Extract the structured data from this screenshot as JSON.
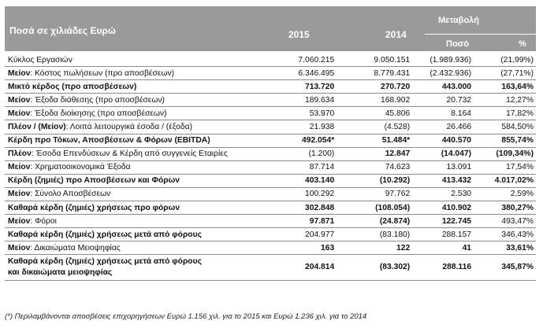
{
  "header": {
    "title": "Ποσά σε χιλιάδες Ευρώ",
    "year_2015": "2015",
    "year_2014": "2014",
    "change": "Μεταβολή",
    "amount": "Ποσό",
    "percent": "%"
  },
  "rows": [
    {
      "pre": "",
      "label": "Κύκλος Εργασιών",
      "v2015": "7.060.215",
      "v2014": "9.050.151",
      "diff": "(1.989.936)",
      "pct": "(21,99%)",
      "bold": false
    },
    {
      "pre": "Μείον",
      "label": ": Κόστος πωλήσεων (προ αποσβέσεων)",
      "v2015": "6.346.495",
      "v2014": "8.779.431",
      "diff": "(2.432.936)",
      "pct": "(27,71%)",
      "bold": false
    },
    {
      "pre": "",
      "label": "Μικτό κέρδος (προ αποσβέσεων)",
      "v2015": "713.720",
      "v2014": "270.720",
      "diff": "443.000",
      "pct": "163,64%",
      "bold": true
    },
    {
      "pre": "Μείον",
      "label": ": Έξοδα διάθεσης (προ αποσβέσεων)",
      "v2015": "189.634",
      "v2014": "168.902",
      "diff": "20.732",
      "pct": "12,27%",
      "bold": false
    },
    {
      "pre": "Μείον",
      "label": ": Έξοδα διοίκησης (προ αποσβέσεων)",
      "v2015": "53.970",
      "v2014": "45.806",
      "diff": "8.164",
      "pct": "17,82%",
      "bold": false
    },
    {
      "pre": "Πλέον / (Μείον)",
      "label": ": Λοιπά λειτουργικά έσοδα / (έξοδα)",
      "v2015": "21.938",
      "v2014": "(4.528)",
      "diff": "26.466",
      "pct": "584,50%",
      "bold": false
    },
    {
      "pre": "",
      "label": "Κέρδη προ Τόκων, Αποσβέσεων & Φόρων (EBITDA)",
      "v2015": "492.054*",
      "v2014": "51.484*",
      "diff": "440.570",
      "pct": "855,74%",
      "bold": true
    },
    {
      "pre": "Πλέον",
      "label": ": Έσοδα Επενδύσεων & Κέρδη από συγγενείς Εταιρίες",
      "v2015": "(1.200)",
      "v2014": "12.847",
      "diff": "(14.047)",
      "pct": "(109,34%)",
      "bold": false,
      "bold_v2014": true,
      "bold_diff": true,
      "bold_pct": true
    },
    {
      "pre": "Μείον",
      "label": ": Χρηματοοικονομικά Έξοδα",
      "v2015": "87.714",
      "v2014": "74.623",
      "diff": "13.091",
      "pct": "17,54%",
      "bold": false
    },
    {
      "pre": "",
      "label": "Κέρδη (ζημιές) προ Αποσβέσεων και Φόρων",
      "v2015": "403.140",
      "v2014": "(10.292)",
      "diff": "413.432",
      "pct": "4.017,02%",
      "bold": true
    },
    {
      "pre": "Μείον",
      "label": ": Σύνολο Αποσβέσεων",
      "v2015": "100.292",
      "v2014": "97.762",
      "diff": "2.530",
      "pct": "2,59%",
      "bold": false
    },
    {
      "pre": "",
      "label": "Καθαρά κέρδη (ζημιές) χρήσεως προ φόρων",
      "v2015": "302.848",
      "v2014": "(108.054)",
      "diff": "410.902",
      "pct": "380,27%",
      "bold": true
    },
    {
      "pre": "Μείον",
      "label": ": Φόροι",
      "v2015": "97.871",
      "v2014": "(24.874)",
      "diff": "122.745",
      "pct": "493,47%",
      "bold": false,
      "bold_v2015": true,
      "bold_v2014": true,
      "bold_diff": true
    },
    {
      "pre": "",
      "label": "Καθαρά κέρδη (ζημιές) χρήσεως μετά από φόρους",
      "v2015": "204.977",
      "v2014": "(83.180)",
      "diff": "288.157",
      "pct": "346,43%",
      "bold": false,
      "bold_label": true
    },
    {
      "pre": "Μείον",
      "label": ": Δικαιώματα Μειοψηφίας",
      "v2015": "163",
      "v2014": "122",
      "diff": "41",
      "pct": "33,61%",
      "bold": false,
      "bold_v2015": true,
      "bold_v2014": true,
      "bold_diff": true,
      "bold_pct": true
    }
  ],
  "final_row": {
    "label_line1": "Καθαρά κέρδη (ζημιές) χρήσεως μετά από φόρους",
    "label_line2": "και δικαιώματα μειοψηφίας",
    "v2015": "204.814",
    "v2014": "(83.302)",
    "diff": "288.116",
    "pct": "345,87%"
  },
  "footnote": "(*) Περιλαμβάνονται αποσβέσεις επιχορηγήσεων Ευρώ 1.156 χιλ. για το 2015 και Ευρώ 1.236 χιλ. για το 2014"
}
